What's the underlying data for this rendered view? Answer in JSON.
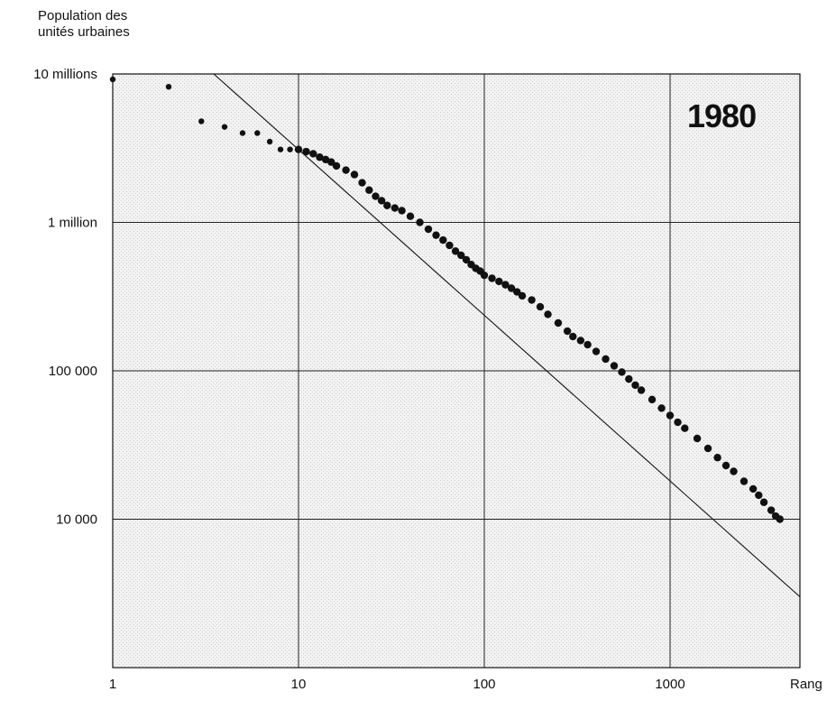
{
  "chart_data": {
    "type": "scatter",
    "annotation": "1980",
    "ylabel_line1": "Population des",
    "ylabel_line2": "unités urbaines",
    "xlabel": "Rang",
    "x_scale": "log",
    "y_scale": "log",
    "xlim": [
      1,
      5000
    ],
    "ylim": [
      1000,
      10000000
    ],
    "x_ticks": [
      {
        "value": 1,
        "label": "1"
      },
      {
        "value": 10,
        "label": "10"
      },
      {
        "value": 100,
        "label": "100"
      },
      {
        "value": 1000,
        "label": "1000"
      }
    ],
    "y_ticks": [
      {
        "value": 10000000,
        "label": "10 millions"
      },
      {
        "value": 1000000,
        "label": "1 million"
      },
      {
        "value": 100000,
        "label": "100 000"
      },
      {
        "value": 10000,
        "label": "10 000"
      }
    ],
    "grid": true,
    "background": "stippled light gray",
    "fit_line": {
      "type": "power-law",
      "points": [
        [
          3.5,
          10000000
        ],
        [
          5000,
          3000
        ]
      ]
    },
    "series": [
      {
        "points": [
          [
            1,
            9200000
          ],
          [
            2,
            8200000
          ],
          [
            3,
            4800000
          ],
          [
            4,
            4400000
          ],
          [
            5,
            4000000
          ],
          [
            6,
            4000000
          ],
          [
            7,
            3500000
          ],
          [
            8,
            3100000
          ],
          [
            9,
            3100000
          ],
          [
            10,
            3100000
          ],
          [
            11,
            3000000
          ],
          [
            12,
            2900000
          ],
          [
            13,
            2750000
          ],
          [
            14,
            2650000
          ],
          [
            15,
            2550000
          ],
          [
            16,
            2400000
          ],
          [
            18,
            2250000
          ],
          [
            20,
            2100000
          ],
          [
            22,
            1850000
          ],
          [
            24,
            1650000
          ],
          [
            26,
            1500000
          ],
          [
            28,
            1400000
          ],
          [
            30,
            1300000
          ],
          [
            33,
            1250000
          ],
          [
            36,
            1200000
          ],
          [
            40,
            1100000
          ],
          [
            45,
            1000000
          ],
          [
            50,
            900000
          ],
          [
            55,
            820000
          ],
          [
            60,
            760000
          ],
          [
            65,
            700000
          ],
          [
            70,
            640000
          ],
          [
            75,
            600000
          ],
          [
            80,
            560000
          ],
          [
            85,
            520000
          ],
          [
            90,
            490000
          ],
          [
            95,
            470000
          ],
          [
            100,
            440000
          ],
          [
            110,
            420000
          ],
          [
            120,
            400000
          ],
          [
            130,
            380000
          ],
          [
            140,
            360000
          ],
          [
            150,
            340000
          ],
          [
            160,
            320000
          ],
          [
            180,
            300000
          ],
          [
            200,
            270000
          ],
          [
            220,
            240000
          ],
          [
            250,
            210000
          ],
          [
            280,
            185000
          ],
          [
            300,
            170000
          ],
          [
            330,
            160000
          ],
          [
            360,
            150000
          ],
          [
            400,
            135000
          ],
          [
            450,
            120000
          ],
          [
            500,
            108000
          ],
          [
            550,
            98000
          ],
          [
            600,
            88000
          ],
          [
            650,
            80000
          ],
          [
            700,
            74000
          ],
          [
            800,
            64000
          ],
          [
            900,
            56000
          ],
          [
            1000,
            50000
          ],
          [
            1100,
            45000
          ],
          [
            1200,
            41000
          ],
          [
            1400,
            35000
          ],
          [
            1600,
            30000
          ],
          [
            1800,
            26000
          ],
          [
            2000,
            23000
          ],
          [
            2200,
            21000
          ],
          [
            2500,
            18000
          ],
          [
            2800,
            16000
          ],
          [
            3000,
            14500
          ],
          [
            3200,
            13000
          ],
          [
            3500,
            11500
          ],
          [
            3700,
            10500
          ],
          [
            3900,
            10000
          ]
        ]
      }
    ]
  }
}
